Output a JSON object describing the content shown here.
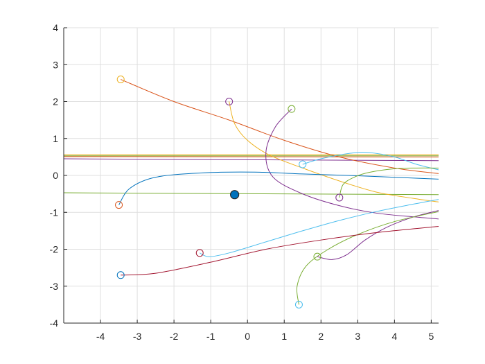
{
  "chart_data": {
    "type": "line",
    "xlim": [
      -5,
      5.2
    ],
    "ylim": [
      -4,
      4
    ],
    "xticks": [
      -4,
      -3,
      -2,
      -1,
      0,
      1,
      2,
      3,
      4,
      5
    ],
    "yticks": [
      -4,
      -3,
      -2,
      -1,
      0,
      1,
      2,
      3,
      4
    ],
    "grid": true,
    "equilibrium_point": {
      "x": -0.35,
      "y": -0.52,
      "color": "#0072BD"
    },
    "lines": [
      {
        "color": "#EDB120",
        "points": [
          [
            -5,
            0.56
          ],
          [
            5.2,
            0.56
          ]
        ]
      },
      {
        "color": "#77AC30",
        "points": [
          [
            -5,
            0.53
          ],
          [
            5.2,
            0.53
          ]
        ]
      },
      {
        "color": "#D95319",
        "points": [
          [
            -5,
            0.51
          ],
          [
            5.2,
            0.5
          ]
        ]
      },
      {
        "color": "#7E2F8E",
        "points": [
          [
            -5,
            0.45
          ],
          [
            5.2,
            0.4
          ]
        ]
      },
      {
        "color": "#77AC30",
        "points": [
          [
            -5,
            -0.47
          ],
          [
            5.2,
            -0.52
          ]
        ]
      }
    ],
    "series": [
      {
        "color": "#D95319",
        "points": [
          [
            -3.45,
            2.6
          ],
          [
            -2.0,
            2.0
          ],
          [
            -0.5,
            1.5
          ],
          [
            1.0,
            0.95
          ],
          [
            2.5,
            0.5
          ],
          [
            4.0,
            0.2
          ],
          [
            5.2,
            0.05
          ]
        ]
      },
      {
        "color": "#EDB120",
        "points": [
          [
            -0.5,
            2.0
          ],
          [
            -0.35,
            1.4
          ],
          [
            0.0,
            0.95
          ],
          [
            0.6,
            0.55
          ],
          [
            1.5,
            0.2
          ],
          [
            2.5,
            -0.15
          ],
          [
            3.5,
            -0.45
          ],
          [
            4.5,
            -0.62
          ],
          [
            5.2,
            -0.72
          ]
        ]
      },
      {
        "color": "#7E2F8E",
        "points": [
          [
            1.2,
            1.8
          ],
          [
            0.75,
            1.3
          ],
          [
            0.5,
            0.6
          ],
          [
            0.7,
            -0.05
          ],
          [
            1.5,
            -0.5
          ],
          [
            2.5,
            -0.82
          ],
          [
            3.5,
            -1.02
          ],
          [
            4.5,
            -1.12
          ],
          [
            5.2,
            -1.18
          ]
        ]
      },
      {
        "color": "#4DBEEE",
        "points": [
          [
            1.5,
            0.3
          ],
          [
            2.0,
            0.45
          ],
          [
            2.8,
            0.6
          ],
          [
            3.3,
            0.62
          ],
          [
            4.0,
            0.5
          ],
          [
            4.6,
            0.3
          ],
          [
            5.2,
            0.15
          ]
        ]
      },
      {
        "color": "#0072BD",
        "points": [
          [
            -3.5,
            -0.8
          ],
          [
            -3.2,
            -0.35
          ],
          [
            -2.5,
            -0.05
          ],
          [
            -1.2,
            0.07
          ],
          [
            0.2,
            0.09
          ],
          [
            1.5,
            0.04
          ],
          [
            3.0,
            -0.01
          ],
          [
            5.2,
            -0.1
          ]
        ]
      },
      {
        "color": "#77AC30",
        "points": [
          [
            2.5,
            -0.6
          ],
          [
            2.6,
            -0.25
          ],
          [
            2.9,
            -0.05
          ],
          [
            3.3,
            0.08
          ],
          [
            4.0,
            0.18
          ],
          [
            4.6,
            0.2
          ],
          [
            5.2,
            0.2
          ]
        ]
      },
      {
        "color": "#4DBEEE",
        "points": [
          [
            -1.3,
            -2.1
          ],
          [
            -1.05,
            -2.2
          ],
          [
            -0.5,
            -2.1
          ],
          [
            0.5,
            -1.8
          ],
          [
            1.5,
            -1.5
          ],
          [
            2.5,
            -1.22
          ],
          [
            3.5,
            -0.98
          ],
          [
            4.5,
            -0.78
          ],
          [
            5.2,
            -0.65
          ]
        ]
      },
      {
        "color": "#7E2F8E",
        "points": [
          [
            1.9,
            -2.2
          ],
          [
            2.3,
            -2.28
          ],
          [
            2.7,
            -2.15
          ],
          [
            3.2,
            -1.75
          ],
          [
            3.8,
            -1.4
          ],
          [
            4.5,
            -1.13
          ],
          [
            5.2,
            -0.95
          ]
        ]
      },
      {
        "color": "#77AC30",
        "points": [
          [
            1.4,
            -3.5
          ],
          [
            1.35,
            -3.0
          ],
          [
            1.6,
            -2.45
          ],
          [
            2.2,
            -2.0
          ],
          [
            3.0,
            -1.6
          ],
          [
            4.0,
            -1.25
          ],
          [
            5.2,
            -0.98
          ]
        ]
      },
      {
        "color": "#A2142F",
        "points": [
          [
            -3.45,
            -2.7
          ],
          [
            -2.5,
            -2.65
          ],
          [
            -1.0,
            -2.35
          ],
          [
            0.5,
            -2.0
          ],
          [
            2.0,
            -1.75
          ],
          [
            3.5,
            -1.55
          ],
          [
            5.2,
            -1.38
          ]
        ]
      }
    ],
    "start_markers": [
      {
        "x": -3.45,
        "y": 2.6,
        "color": "#EDB120"
      },
      {
        "x": -0.5,
        "y": 2.0,
        "color": "#7E2F8E"
      },
      {
        "x": 1.2,
        "y": 1.8,
        "color": "#77AC30"
      },
      {
        "x": 1.5,
        "y": 0.3,
        "color": "#4DBEEE"
      },
      {
        "x": -3.5,
        "y": -0.8,
        "color": "#D95319"
      },
      {
        "x": 2.5,
        "y": -0.6,
        "color": "#7E2F8E"
      },
      {
        "x": -1.3,
        "y": -2.1,
        "color": "#A2142F"
      },
      {
        "x": 1.9,
        "y": -2.2,
        "color": "#77AC30"
      },
      {
        "x": -3.45,
        "y": -2.7,
        "color": "#0072BD"
      },
      {
        "x": 1.4,
        "y": -3.5,
        "color": "#4DBEEE"
      }
    ]
  }
}
